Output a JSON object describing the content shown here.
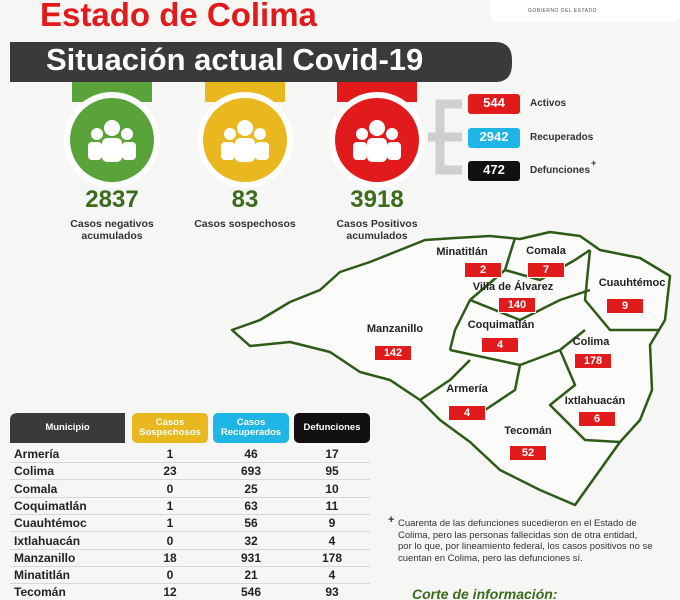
{
  "header": {
    "title": "Estado de Colima",
    "subtitle": "Situación actual Covid-19",
    "logo_text": "GOBIERNO DEL ESTADO"
  },
  "summary": [
    {
      "value": 2837,
      "label": "Casos negativos acumulados"
    },
    {
      "value": 83,
      "label": "Casos sospechosos"
    },
    {
      "value": 3918,
      "label": "Casos Positivos acumulados"
    }
  ],
  "breakdown": [
    {
      "value": 544,
      "label": "Activos"
    },
    {
      "value": 2942,
      "label": "Recuperados"
    },
    {
      "value": 472,
      "label": "Defunciones",
      "mark": "+"
    }
  ],
  "map": [
    {
      "name": "Minatitlán",
      "value": 2
    },
    {
      "name": "Comala",
      "value": 7
    },
    {
      "name": "Villa de Álvarez",
      "value": 140
    },
    {
      "name": "Cuauhtémoc",
      "value": 9
    },
    {
      "name": "Manzanillo",
      "value": 142
    },
    {
      "name": "Coquimatlán",
      "value": 4
    },
    {
      "name": "Colima",
      "value": 178
    },
    {
      "name": "Armería",
      "value": 4
    },
    {
      "name": "Ixtlahuacán",
      "value": 6
    },
    {
      "name": "Tecomán",
      "value": 52
    }
  ],
  "table": {
    "columns": [
      "Municipio",
      "Casos Sospechosos",
      "Casos Recuperados",
      "Defunciones"
    ],
    "rows": [
      [
        "Armería",
        1,
        46,
        17
      ],
      [
        "Colima",
        23,
        693,
        95
      ],
      [
        "Comala",
        0,
        25,
        10
      ],
      [
        "Coquimatlán",
        1,
        63,
        11
      ],
      [
        "Cuauhtémoc",
        1,
        56,
        9
      ],
      [
        "Ixtlahuacán",
        0,
        32,
        4
      ],
      [
        "Manzanillo",
        18,
        931,
        178
      ],
      [
        "Minatitlán",
        0,
        21,
        4
      ],
      [
        "Tecomán",
        12,
        546,
        93
      ]
    ]
  },
  "footnote": {
    "mark": "+",
    "text": "Cuarenta de las defunciones sucedieron en el Estado de Colima, pero las personas fallecidas son de otra entidad, por lo que, por lineamiento federal, los casos positivos no se cuentan en Colima, pero las defunciones sí."
  },
  "cutoff": {
    "label": "Corte de información:"
  }
}
